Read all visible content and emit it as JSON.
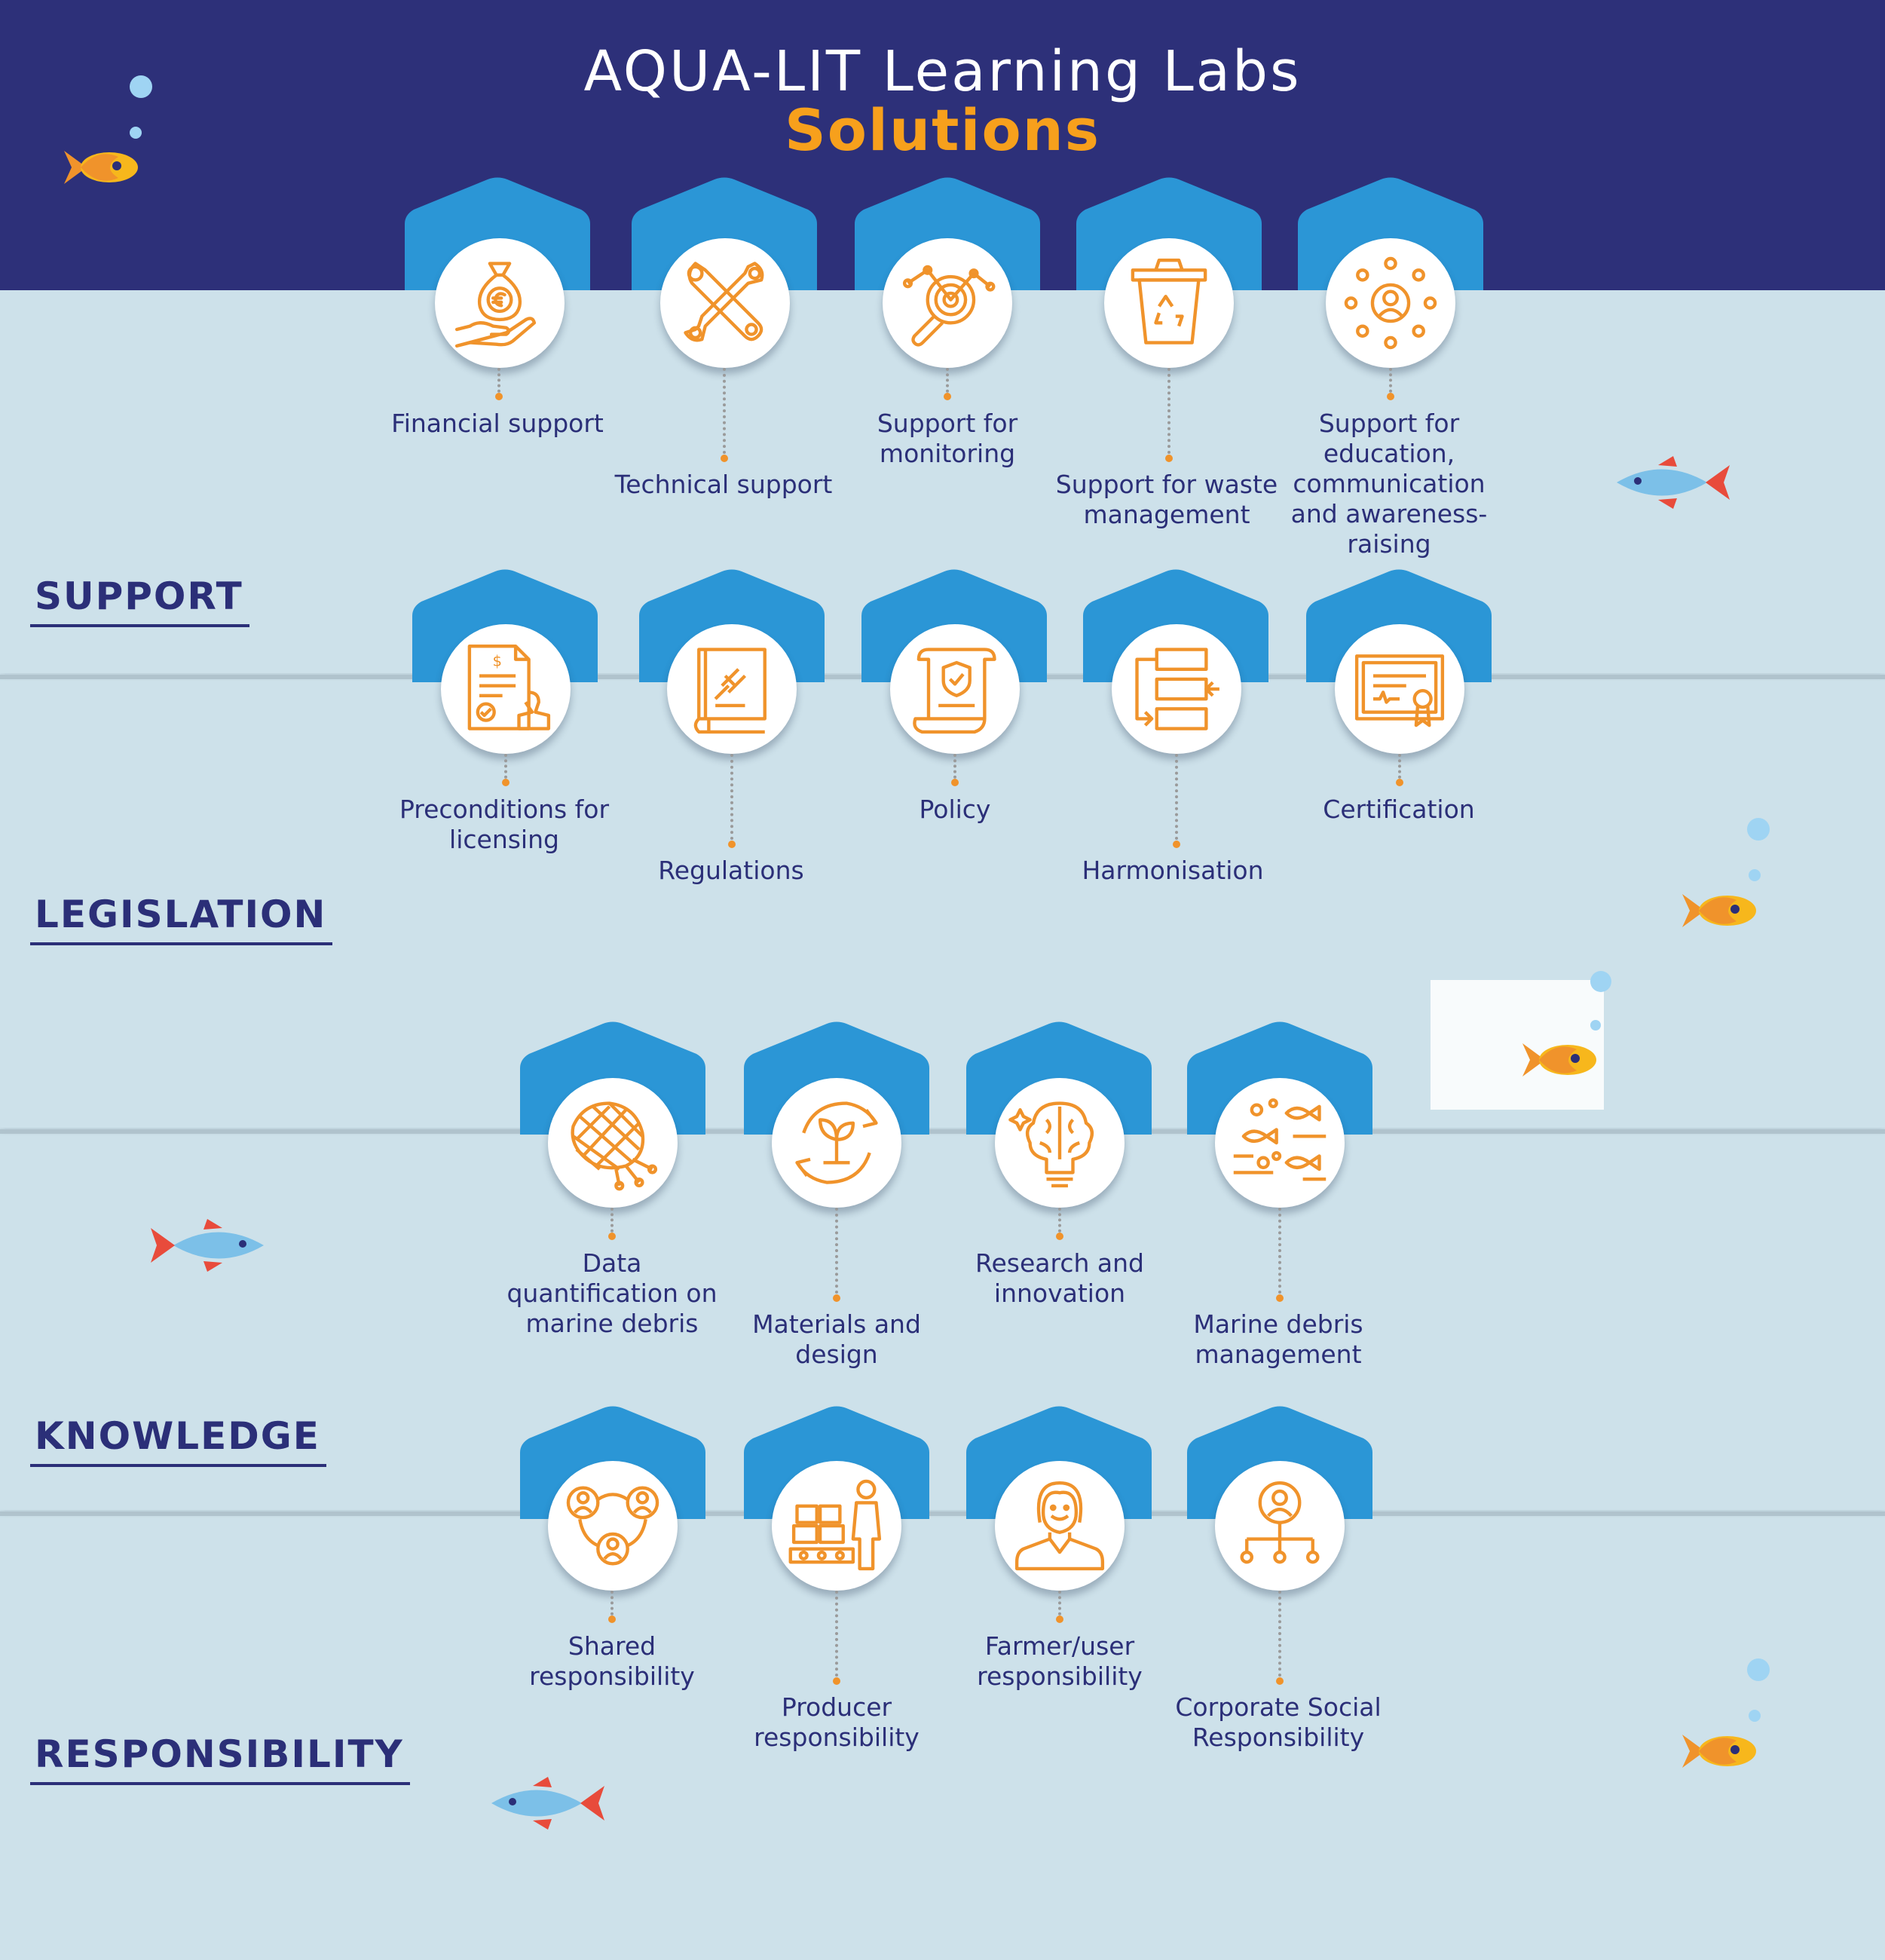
{
  "header": {
    "title": "AQUA-LIT Learning Labs",
    "subtitle": "Solutions"
  },
  "colors": {
    "navy_header": "#2d3079",
    "water_light": "#cde1ea",
    "house_blue": "#2b96d6",
    "icon_orange": "#f0932b",
    "text_navy": "#2b2f78",
    "subtitle_orange": "#f7a01c"
  },
  "sections": [
    {
      "title": "SUPPORT",
      "items": [
        {
          "label": "Financial support",
          "icon": "money-bag-hand-icon"
        },
        {
          "label": "Technical support",
          "icon": "wrench-tools-icon"
        },
        {
          "label": "Support for monitoring",
          "icon": "magnifier-target-icon"
        },
        {
          "label": "Support for waste management",
          "icon": "recycling-bin-icon"
        },
        {
          "label": "Support for education, communication and awareness-raising",
          "icon": "person-network-icon"
        }
      ]
    },
    {
      "title": "LEGISLATION",
      "items": [
        {
          "label": "Preconditions for licensing",
          "icon": "licence-document-stamp-icon"
        },
        {
          "label": "Regulations",
          "icon": "law-book-gavel-icon"
        },
        {
          "label": "Policy",
          "icon": "policy-scroll-shield-icon"
        },
        {
          "label": "Harmonisation",
          "icon": "harmonisation-arrows-icon"
        },
        {
          "label": "Certification",
          "icon": "certificate-icon"
        }
      ]
    },
    {
      "title": "KNOWLEDGE",
      "items": [
        {
          "label": "Data quantification on marine debris",
          "icon": "fishing-net-data-icon"
        },
        {
          "label": "Materials and design",
          "icon": "circular-leaf-icon"
        },
        {
          "label": "Research and innovation",
          "icon": "brain-bulb-icon"
        },
        {
          "label": "Marine debris management",
          "icon": "fish-debris-icon"
        }
      ]
    },
    {
      "title": "RESPONSIBILITY",
      "items": [
        {
          "label": "Shared responsibility",
          "icon": "shared-people-icon"
        },
        {
          "label": "Producer responsibility",
          "icon": "producer-conveyor-icon"
        },
        {
          "label": "Farmer/user responsibility",
          "icon": "farmer-user-icon"
        },
        {
          "label": "Corporate Social Responsibility",
          "icon": "corporate-hierarchy-icon"
        }
      ]
    }
  ]
}
